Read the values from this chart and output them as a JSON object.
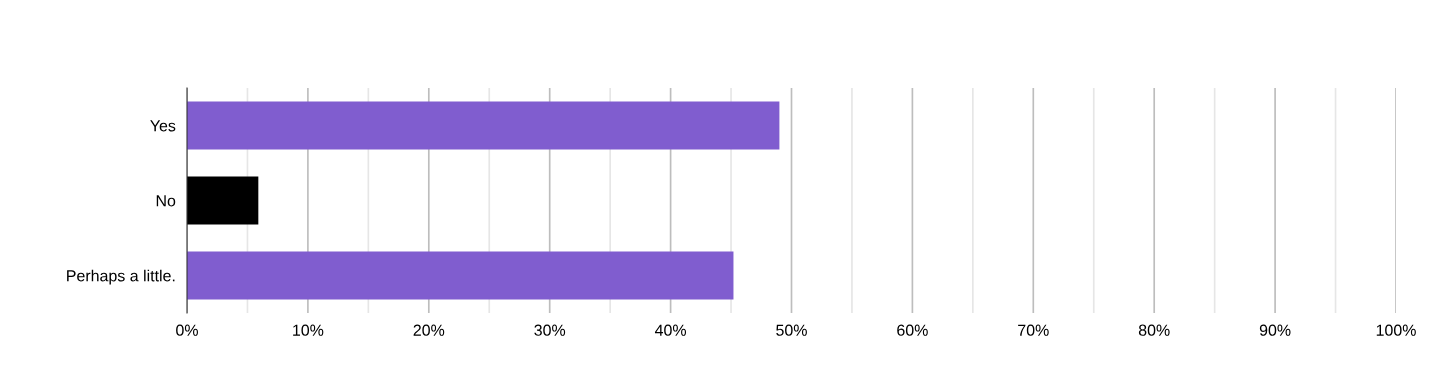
{
  "chart_data": {
    "type": "bar",
    "orientation": "horizontal",
    "categories": [
      "Yes",
      "No",
      "Perhaps a little."
    ],
    "values": [
      49,
      5.9,
      45.2
    ],
    "colors": [
      "#805dcf",
      "#000000",
      "#805dcf"
    ],
    "xlim": [
      0,
      100
    ],
    "xticks": [
      {
        "value": 0,
        "label": "0%"
      },
      {
        "value": 5,
        "label": null
      },
      {
        "value": 10,
        "label": "10%"
      },
      {
        "value": 15,
        "label": null
      },
      {
        "value": 20,
        "label": "20%"
      },
      {
        "value": 25,
        "label": null
      },
      {
        "value": 30,
        "label": "30%"
      },
      {
        "value": 35,
        "label": null
      },
      {
        "value": 40,
        "label": "40%"
      },
      {
        "value": 45,
        "label": null
      },
      {
        "value": 50,
        "label": "50%"
      },
      {
        "value": 55,
        "label": null
      },
      {
        "value": 60,
        "label": "60%"
      },
      {
        "value": 65,
        "label": null
      },
      {
        "value": 70,
        "label": "70%"
      },
      {
        "value": 75,
        "label": null
      },
      {
        "value": 80,
        "label": "80%"
      },
      {
        "value": 85,
        "label": null
      },
      {
        "value": 90,
        "label": "90%"
      },
      {
        "value": 95,
        "label": null
      },
      {
        "value": 100,
        "label": "100%"
      }
    ],
    "grid": "x"
  }
}
